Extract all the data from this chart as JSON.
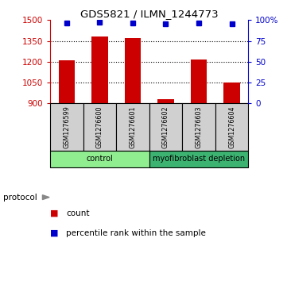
{
  "title": "GDS5821 / ILMN_1244773",
  "samples": [
    "GSM1276599",
    "GSM1276600",
    "GSM1276601",
    "GSM1276602",
    "GSM1276603",
    "GSM1276604"
  ],
  "counts": [
    1207,
    1383,
    1368,
    930,
    1218,
    1048
  ],
  "percentile_ranks": [
    97,
    98,
    97,
    96,
    97,
    96
  ],
  "groups": [
    "control",
    "control",
    "control",
    "myofibroblast depletion",
    "myofibroblast depletion",
    "myofibroblast depletion"
  ],
  "group_colors": {
    "control": "#90EE90",
    "myofibroblast depletion": "#3CB371"
  },
  "ylim_left": [
    900,
    1500
  ],
  "yticks_left": [
    900,
    1050,
    1200,
    1350,
    1500
  ],
  "ylim_right": [
    0,
    100
  ],
  "yticks_right": [
    0,
    25,
    50,
    75,
    100
  ],
  "bar_color": "#CC0000",
  "dot_color": "#0000CC",
  "bar_width": 0.5,
  "left_axis_color": "#CC0000",
  "right_axis_color": "#0000CC",
  "legend_count_color": "#CC0000",
  "legend_rank_color": "#0000CC",
  "protocol_label": "protocol",
  "legend_items": [
    "count",
    "percentile rank within the sample"
  ]
}
